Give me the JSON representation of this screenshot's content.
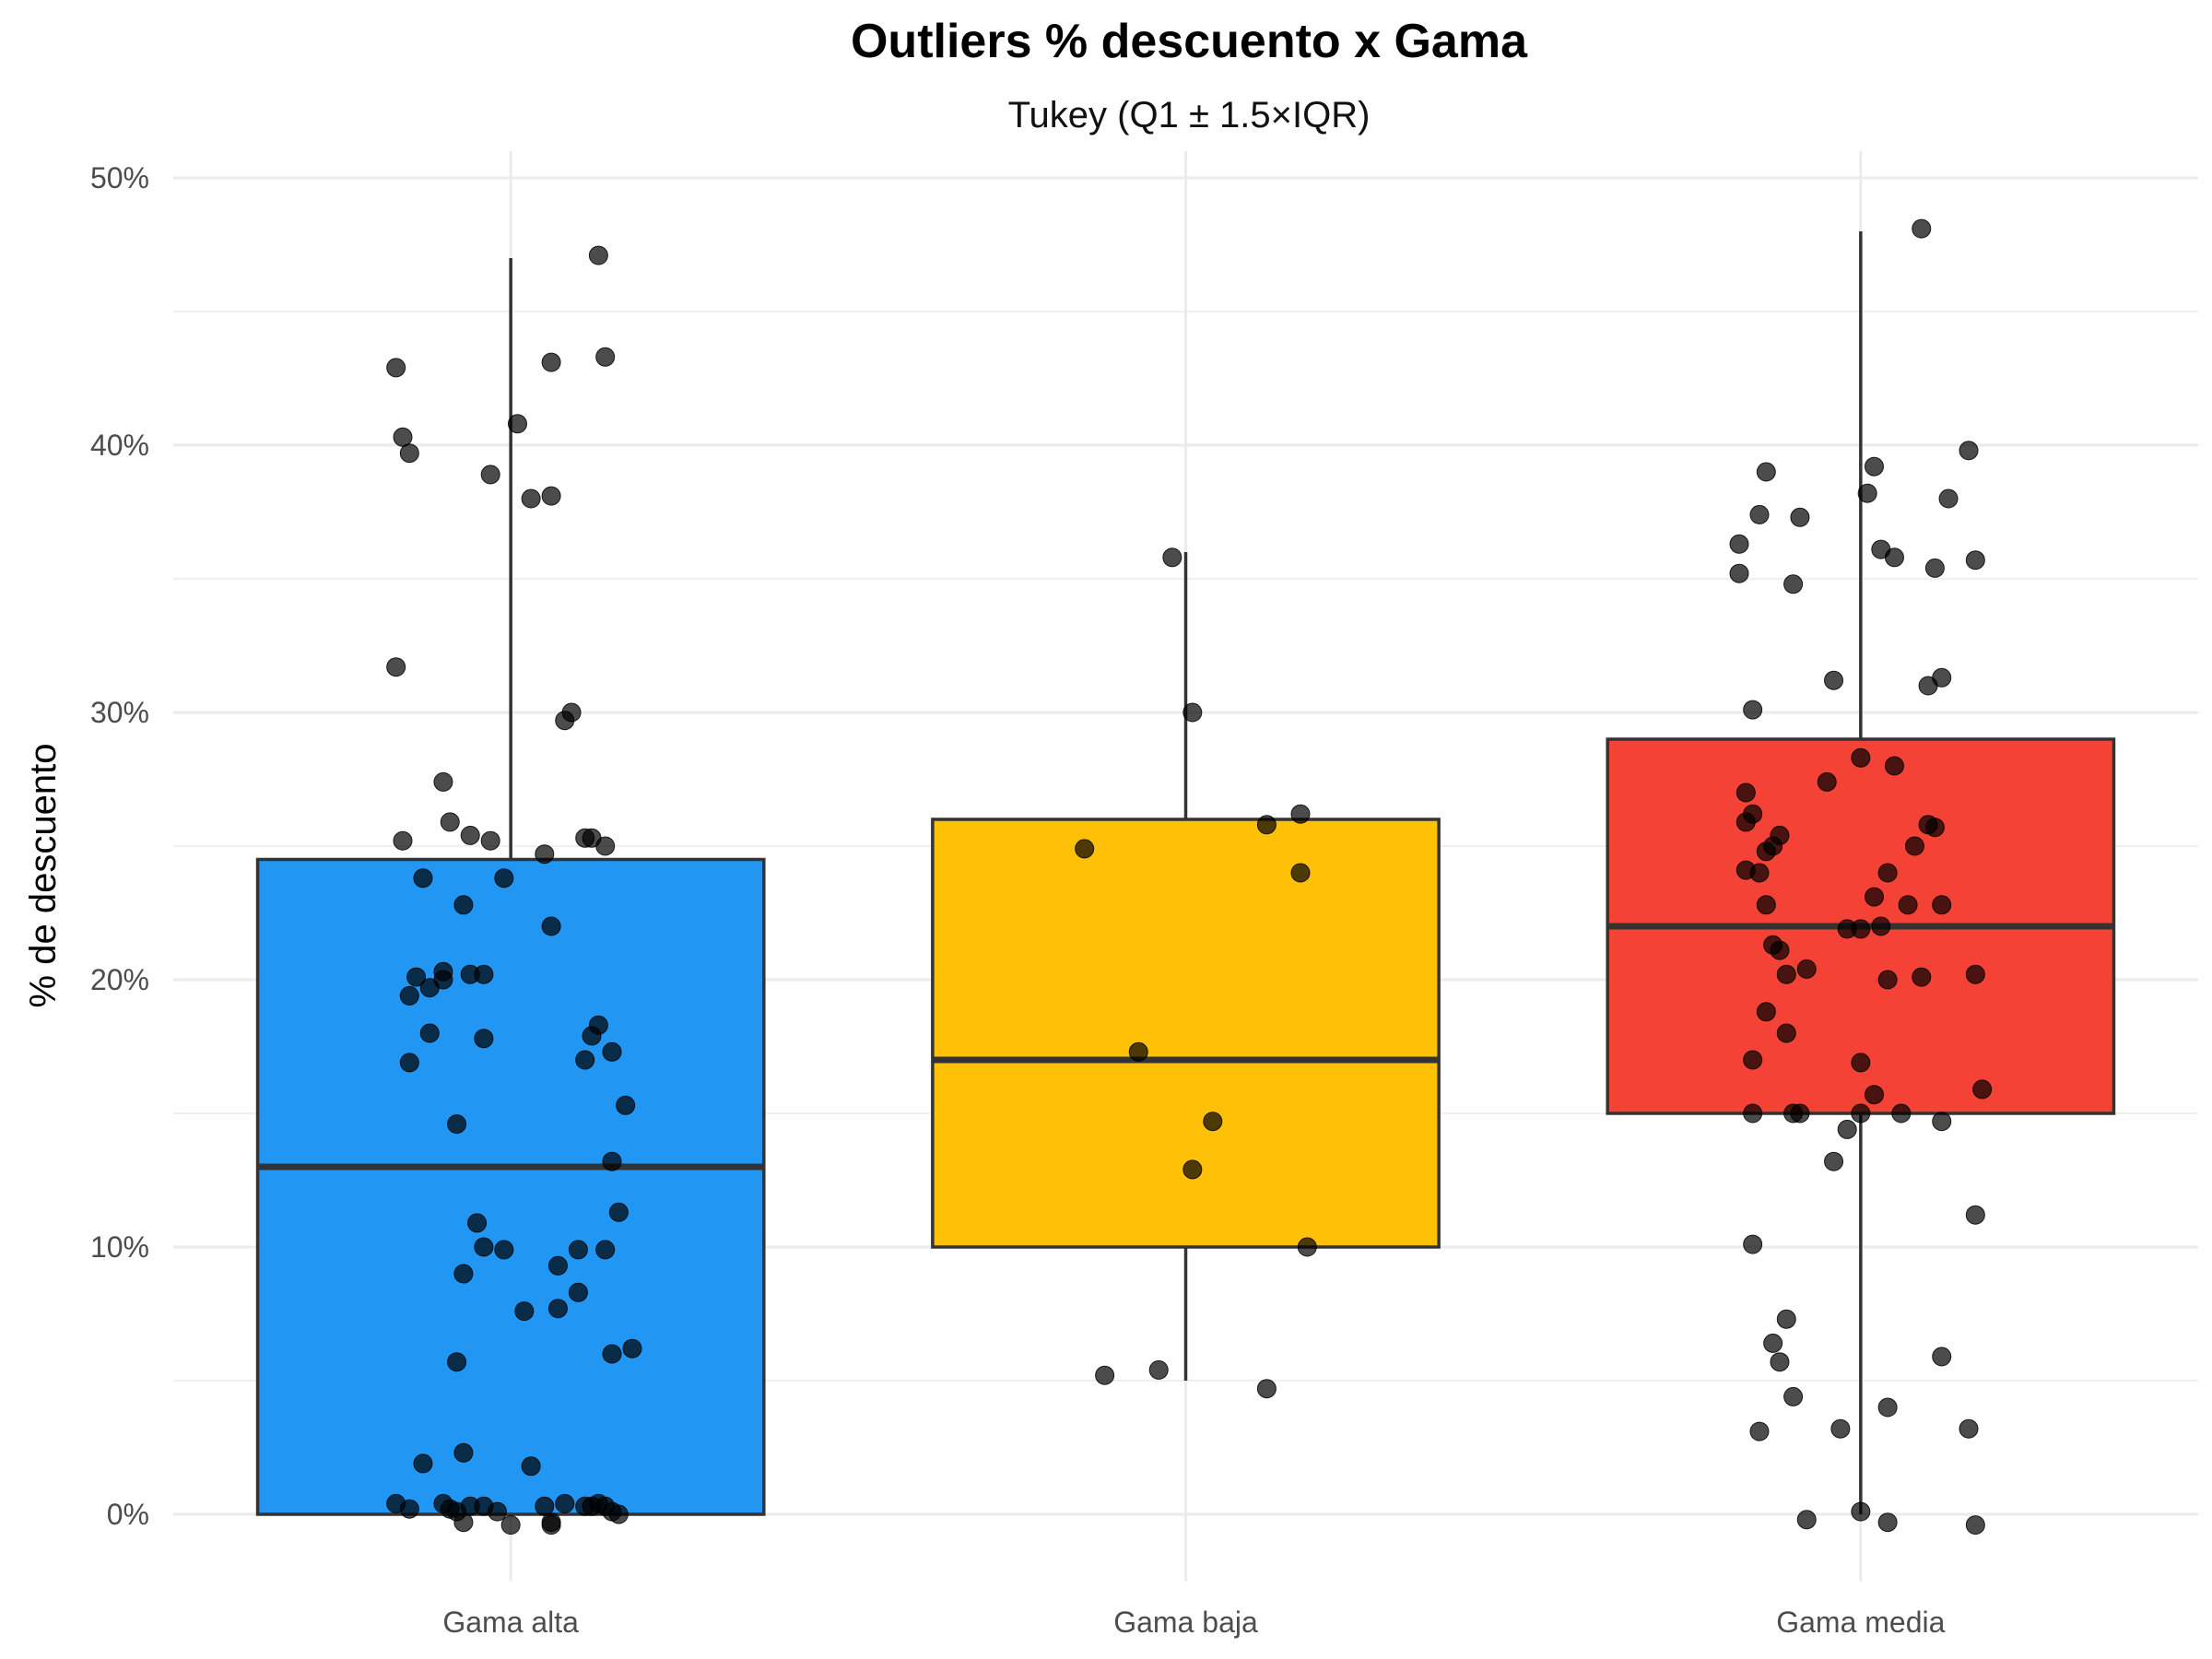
{
  "chart_data": {
    "type": "box",
    "title": "Outliers % descuento x Gama",
    "subtitle": "Tukey (Q1 ± 1.5×IQR)",
    "xlabel": "",
    "ylabel": "% de descuento",
    "ylim": [
      -2.5,
      51
    ],
    "y_ticks": [
      0,
      10,
      20,
      30,
      40,
      50
    ],
    "y_tick_labels": [
      "0%",
      "10%",
      "20%",
      "30%",
      "40%",
      "50%"
    ],
    "grid": true,
    "categories": [
      "Gama alta",
      "Gama baja",
      "Gama media"
    ],
    "series": [
      {
        "category": "Gama alta",
        "color": "#2196F3",
        "whisker_low": 0,
        "q1": 0,
        "median": 13,
        "q3": 24.5,
        "whisker_high": 47,
        "points": [
          [
            -0.17,
            42.9
          ],
          [
            -0.16,
            40.3
          ],
          [
            -0.15,
            39.7
          ],
          [
            -0.03,
            38.9
          ],
          [
            0.01,
            40.8
          ],
          [
            0.06,
            43.1
          ],
          [
            0.13,
            47.1
          ],
          [
            0.14,
            43.3
          ],
          [
            0.03,
            38
          ],
          [
            0.06,
            38.1
          ],
          [
            -0.17,
            31.7
          ],
          [
            0.08,
            29.7
          ],
          [
            0.09,
            30
          ],
          [
            -0.1,
            27.4
          ],
          [
            -0.09,
            25.9
          ],
          [
            -0.06,
            25.4
          ],
          [
            -0.03,
            25.2
          ],
          [
            -0.16,
            25.2
          ],
          [
            0.05,
            24.7
          ],
          [
            0.11,
            25.3
          ],
          [
            0.12,
            25.3
          ],
          [
            0.14,
            25
          ],
          [
            -0.13,
            23.8
          ],
          [
            -0.01,
            23.8
          ],
          [
            -0.07,
            22.8
          ],
          [
            0.06,
            22
          ],
          [
            -0.14,
            20.1
          ],
          [
            -0.1,
            20.3
          ],
          [
            -0.06,
            20.2
          ],
          [
            -0.04,
            20.2
          ],
          [
            -0.12,
            19.7
          ],
          [
            -0.15,
            19.4
          ],
          [
            -0.1,
            20
          ],
          [
            0.13,
            18.3
          ],
          [
            0.12,
            17.9
          ],
          [
            -0.12,
            18
          ],
          [
            -0.04,
            17.8
          ],
          [
            0.15,
            17.3
          ],
          [
            0.11,
            17
          ],
          [
            -0.15,
            16.9
          ],
          [
            0.17,
            15.3
          ],
          [
            -0.08,
            14.6
          ],
          [
            0.15,
            13.2
          ],
          [
            0.16,
            11.3
          ],
          [
            -0.05,
            10.9
          ],
          [
            -0.04,
            10
          ],
          [
            -0.01,
            9.9
          ],
          [
            0.1,
            9.9
          ],
          [
            0.14,
            9.9
          ],
          [
            -0.07,
            9
          ],
          [
            0.07,
            9.3
          ],
          [
            0.1,
            8.3
          ],
          [
            0.02,
            7.6
          ],
          [
            0.07,
            7.7
          ],
          [
            0.15,
            6
          ],
          [
            0.18,
            6.2
          ],
          [
            -0.08,
            5.7
          ],
          [
            -0.07,
            2.3
          ],
          [
            -0.13,
            1.9
          ],
          [
            0.03,
            1.8
          ],
          [
            -0.17,
            0.4
          ],
          [
            -0.15,
            0.2
          ],
          [
            -0.1,
            0.4
          ],
          [
            -0.09,
            0.2
          ],
          [
            -0.08,
            0.1
          ],
          [
            -0.06,
            0.3
          ],
          [
            -0.04,
            0.3
          ],
          [
            -0.02,
            0.1
          ],
          [
            0.05,
            0.3
          ],
          [
            0.08,
            0.4
          ],
          [
            0.11,
            0.3
          ],
          [
            0.12,
            0.3
          ],
          [
            0.13,
            0.4
          ],
          [
            0.14,
            0.3
          ],
          [
            0.16,
            0
          ],
          [
            -0.07,
            -0.3
          ],
          [
            0.0,
            -0.4
          ],
          [
            0.06,
            -0.3
          ],
          [
            0.06,
            -0.4
          ],
          [
            0.15,
            0.1
          ]
        ]
      },
      {
        "category": "Gama baja",
        "color": "#FFC107",
        "whisker_low": 5,
        "q1": 10,
        "median": 17,
        "q3": 26,
        "whisker_high": 36,
        "points": [
          [
            -0.02,
            35.8
          ],
          [
            0.01,
            30
          ],
          [
            0.17,
            26.2
          ],
          [
            0.12,
            25.8
          ],
          [
            -0.15,
            24.9
          ],
          [
            0.17,
            24
          ],
          [
            -0.07,
            17.3
          ],
          [
            0.04,
            14.7
          ],
          [
            0.01,
            12.9
          ],
          [
            0.18,
            10
          ],
          [
            -0.12,
            5.2
          ],
          [
            -0.04,
            5.4
          ],
          [
            0.12,
            4.7
          ]
        ]
      },
      {
        "category": "Gama media",
        "color": "#F44336",
        "whisker_low": 0,
        "q1": 15,
        "median": 22,
        "q3": 29,
        "whisker_high": 48,
        "points": [
          [
            0.09,
            48.1
          ],
          [
            -0.14,
            39
          ],
          [
            0.02,
            39.2
          ],
          [
            0.16,
            39.8
          ],
          [
            0.01,
            38.2
          ],
          [
            0.13,
            38
          ],
          [
            -0.18,
            36.3
          ],
          [
            -0.15,
            37.4
          ],
          [
            -0.09,
            37.3
          ],
          [
            0.03,
            36.1
          ],
          [
            0.05,
            35.8
          ],
          [
            0.11,
            35.4
          ],
          [
            0.17,
            35.7
          ],
          [
            -0.18,
            35.2
          ],
          [
            -0.1,
            34.8
          ],
          [
            -0.04,
            31.2
          ],
          [
            0.1,
            31
          ],
          [
            0.12,
            31.3
          ],
          [
            -0.16,
            30.1
          ],
          [
            0.05,
            28
          ],
          [
            0.0,
            28.3
          ],
          [
            -0.05,
            27.4
          ],
          [
            -0.17,
            27
          ],
          [
            -0.16,
            26.2
          ],
          [
            -0.17,
            25.9
          ],
          [
            -0.12,
            25.4
          ],
          [
            0.1,
            25.8
          ],
          [
            0.11,
            25.7
          ],
          [
            -0.13,
            25
          ],
          [
            -0.14,
            24.8
          ],
          [
            0.08,
            25
          ],
          [
            -0.17,
            24.1
          ],
          [
            -0.15,
            24
          ],
          [
            0.04,
            24
          ],
          [
            -0.14,
            22.8
          ],
          [
            0.07,
            22.8
          ],
          [
            0.12,
            22.8
          ],
          [
            0.02,
            23.1
          ],
          [
            0.03,
            22
          ],
          [
            -0.02,
            21.9
          ],
          [
            -0.13,
            21.3
          ],
          [
            -0.12,
            21.1
          ],
          [
            0.0,
            21.9
          ],
          [
            -0.08,
            20.4
          ],
          [
            -0.11,
            20.2
          ],
          [
            0.04,
            20
          ],
          [
            0.09,
            20.1
          ],
          [
            0.17,
            20.2
          ],
          [
            -0.14,
            18.8
          ],
          [
            -0.11,
            18
          ],
          [
            -0.16,
            17
          ],
          [
            0.0,
            16.9
          ],
          [
            0.18,
            15.9
          ],
          [
            0.02,
            15.7
          ],
          [
            -0.16,
            15
          ],
          [
            -0.09,
            15
          ],
          [
            -0.1,
            15
          ],
          [
            0.0,
            15
          ],
          [
            0.06,
            15
          ],
          [
            0.12,
            14.7
          ],
          [
            -0.02,
            14.4
          ],
          [
            -0.04,
            13.2
          ],
          [
            0.17,
            11.2
          ],
          [
            -0.16,
            10.1
          ],
          [
            -0.11,
            7.3
          ],
          [
            -0.13,
            6.4
          ],
          [
            -0.12,
            5.7
          ],
          [
            0.12,
            5.9
          ],
          [
            -0.1,
            4.4
          ],
          [
            0.04,
            4
          ],
          [
            -0.15,
            3.1
          ],
          [
            -0.03,
            3.2
          ],
          [
            0.16,
            3.2
          ],
          [
            0.0,
            0.1
          ],
          [
            -0.08,
            -0.2
          ],
          [
            0.04,
            -0.3
          ],
          [
            0.17,
            -0.4
          ]
        ]
      }
    ]
  }
}
